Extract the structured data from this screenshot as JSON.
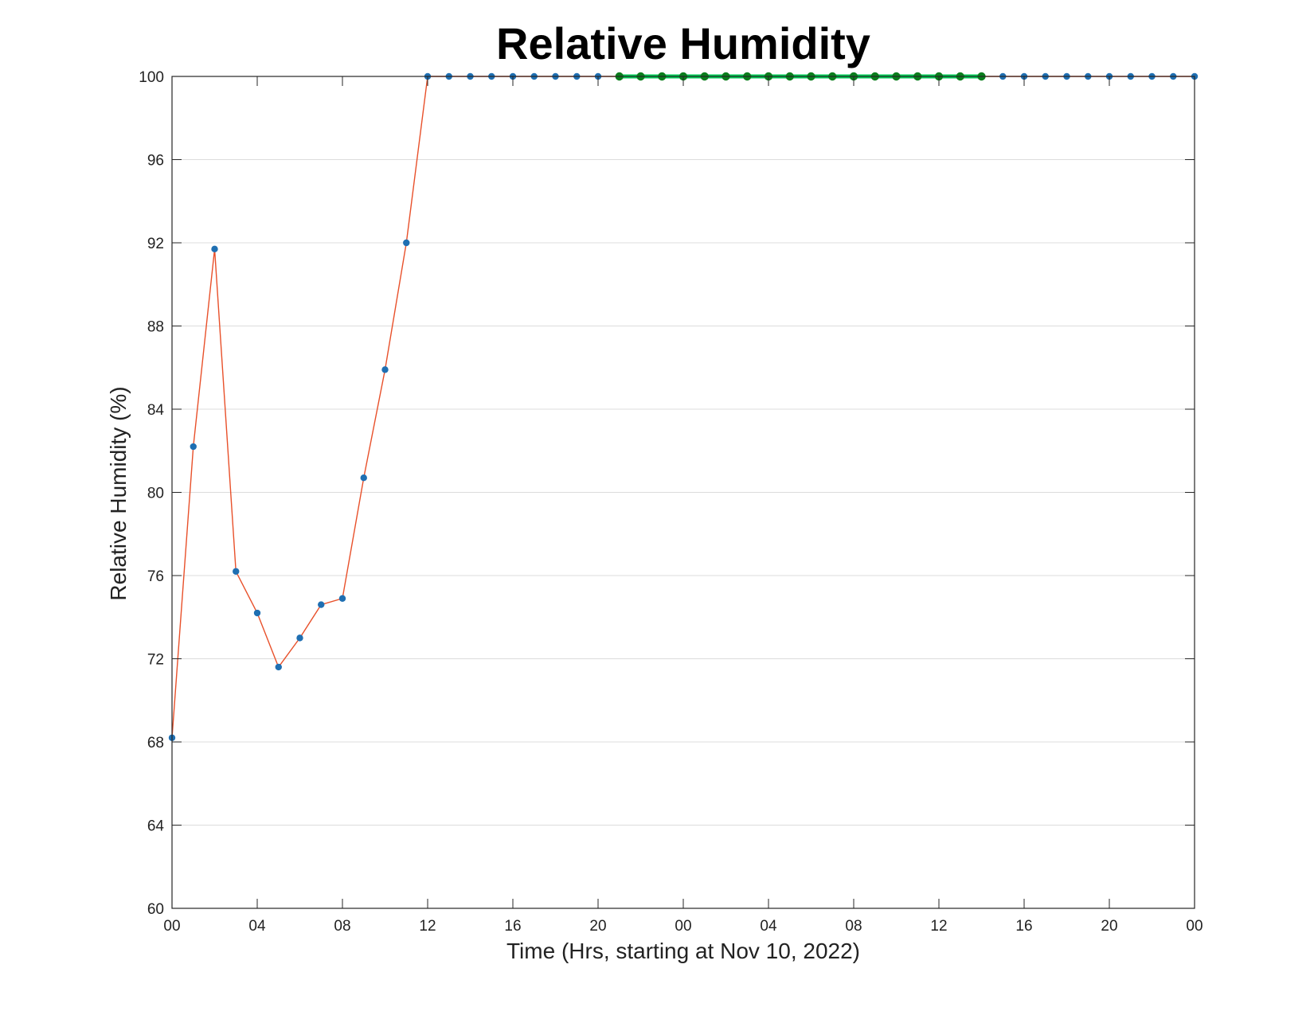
{
  "chart_data": {
    "type": "line",
    "title": "Relative Humidity",
    "xlabel": "Time (Hrs, starting at Nov 10, 2022)",
    "ylabel": "Relative Humidity (%)",
    "x_unit": "hours",
    "xlim": [
      0,
      48
    ],
    "ylim": [
      60,
      100
    ],
    "grid": "horizontal",
    "x_ticks": [
      {
        "x": 0,
        "label": "00"
      },
      {
        "x": 4,
        "label": "04"
      },
      {
        "x": 8,
        "label": "08"
      },
      {
        "x": 12,
        "label": "12"
      },
      {
        "x": 16,
        "label": "16"
      },
      {
        "x": 20,
        "label": "20"
      },
      {
        "x": 24,
        "label": "00"
      },
      {
        "x": 28,
        "label": "04"
      },
      {
        "x": 32,
        "label": "08"
      },
      {
        "x": 36,
        "label": "12"
      },
      {
        "x": 40,
        "label": "16"
      },
      {
        "x": 44,
        "label": "20"
      },
      {
        "x": 48,
        "label": "00"
      }
    ],
    "y_ticks": [
      60,
      64,
      68,
      72,
      76,
      80,
      84,
      88,
      92,
      96,
      100
    ],
    "series": [
      {
        "color": "#e8502a",
        "marker_color": "#1f6fb2",
        "x": [
          0,
          1,
          2,
          3,
          4,
          5,
          6,
          7,
          8,
          9,
          10,
          11,
          12,
          13,
          14,
          15,
          16,
          17,
          18,
          19,
          20,
          21,
          22,
          23,
          24,
          25,
          26,
          27,
          28,
          29,
          30,
          31,
          32,
          33,
          34,
          35,
          36,
          37,
          38,
          39,
          40,
          41,
          42,
          43,
          44,
          45,
          46,
          47,
          48
        ],
        "y": [
          68.2,
          82.2,
          91.7,
          76.2,
          74.2,
          71.6,
          73.0,
          74.6,
          74.9,
          80.7,
          85.9,
          92.0,
          100,
          100,
          100,
          100,
          100,
          100,
          100,
          100,
          100,
          100,
          100,
          100,
          100,
          100,
          100,
          100,
          100,
          100,
          100,
          100,
          100,
          100,
          100,
          100,
          100,
          100,
          100,
          100,
          100,
          100,
          100,
          100,
          100,
          100,
          100,
          100,
          100
        ]
      },
      {
        "color": "#00c853",
        "marker_color": "#0a7d1c",
        "x": [
          21,
          22,
          23,
          24,
          25,
          26,
          27,
          28,
          29,
          30,
          31,
          32,
          33,
          34,
          35,
          36,
          37,
          38
        ],
        "y": [
          100,
          100,
          100,
          100,
          100,
          100,
          100,
          100,
          100,
          100,
          100,
          100,
          100,
          100,
          100,
          100,
          100,
          100
        ]
      }
    ]
  }
}
